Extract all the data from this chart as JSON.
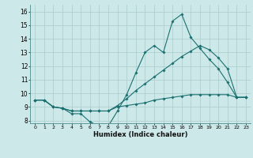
{
  "xlabel": "Humidex (Indice chaleur)",
  "bg_color": "#cde8e8",
  "line_color": "#1a7070",
  "grid_color": "#aacccc",
  "xlim": [
    -0.5,
    23.5
  ],
  "ylim": [
    7.8,
    16.5
  ],
  "xticks": [
    0,
    1,
    2,
    3,
    4,
    5,
    6,
    7,
    8,
    9,
    10,
    11,
    12,
    13,
    14,
    15,
    16,
    17,
    18,
    19,
    20,
    21,
    22,
    23
  ],
  "yticks": [
    8,
    9,
    10,
    11,
    12,
    13,
    14,
    15,
    16
  ],
  "series1_x": [
    0,
    1,
    2,
    3,
    4,
    5,
    6,
    7,
    8,
    9,
    10,
    11,
    12,
    13,
    14,
    15,
    16,
    17,
    18,
    19,
    20,
    21,
    22,
    23
  ],
  "series1_y": [
    9.5,
    9.5,
    9.0,
    8.9,
    8.5,
    8.5,
    7.9,
    7.6,
    7.6,
    8.7,
    9.9,
    11.5,
    13.0,
    13.5,
    13.0,
    15.3,
    15.8,
    14.1,
    13.3,
    12.5,
    11.8,
    10.8,
    9.7,
    9.7
  ],
  "series2_x": [
    0,
    1,
    2,
    3,
    4,
    5,
    6,
    7,
    8,
    9,
    10,
    11,
    12,
    13,
    14,
    15,
    16,
    17,
    18,
    19,
    20,
    21,
    22,
    23
  ],
  "series2_y": [
    9.5,
    9.5,
    9.0,
    8.9,
    8.7,
    8.7,
    8.7,
    8.7,
    8.7,
    9.0,
    9.1,
    9.2,
    9.3,
    9.5,
    9.6,
    9.7,
    9.8,
    9.9,
    9.9,
    9.9,
    9.9,
    9.9,
    9.7,
    9.7
  ],
  "series3_x": [
    0,
    1,
    2,
    3,
    4,
    5,
    6,
    7,
    8,
    9,
    10,
    11,
    12,
    13,
    14,
    15,
    16,
    17,
    18,
    19,
    20,
    21,
    22,
    23
  ],
  "series3_y": [
    9.5,
    9.5,
    9.0,
    8.9,
    8.7,
    8.7,
    8.7,
    8.7,
    8.7,
    9.1,
    9.6,
    10.2,
    10.7,
    11.2,
    11.7,
    12.2,
    12.7,
    13.1,
    13.5,
    13.2,
    12.6,
    11.8,
    9.7,
    9.7
  ]
}
